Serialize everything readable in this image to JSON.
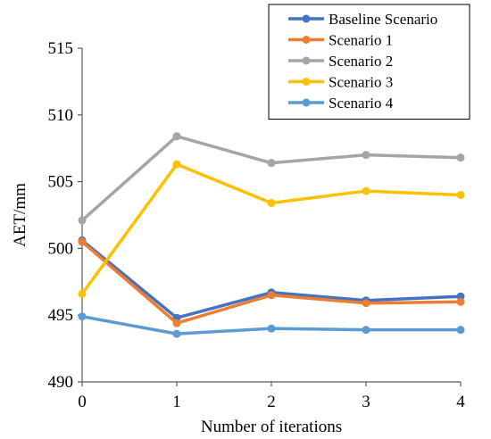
{
  "chart_data": {
    "type": "line",
    "title": "",
    "xlabel": "Number of iterations",
    "ylabel": "AET/mm",
    "x": [
      0,
      1,
      2,
      3,
      4
    ],
    "x_tick_labels": [
      "0",
      "1",
      "2",
      "3",
      "4"
    ],
    "ylim": [
      490,
      515
    ],
    "y_ticks": [
      490,
      495,
      500,
      505,
      510,
      515
    ],
    "grid": false,
    "legend_position": "top-right",
    "series": [
      {
        "name": "Baseline Scenario",
        "color": "#4472C4",
        "values": [
          500.6,
          494.8,
          496.7,
          496.1,
          496.4
        ]
      },
      {
        "name": "Scenario 1",
        "color": "#ED7D31",
        "values": [
          500.5,
          494.4,
          496.5,
          495.9,
          496.0
        ]
      },
      {
        "name": "Scenario 2",
        "color": "#A5A5A5",
        "values": [
          502.1,
          508.4,
          506.4,
          507.0,
          506.8
        ]
      },
      {
        "name": "Scenario 3",
        "color": "#FFC000",
        "values": [
          496.6,
          506.3,
          503.4,
          504.3,
          504.0
        ]
      },
      {
        "name": "Scenario 4",
        "color": "#5B9BD5",
        "values": [
          494.9,
          493.6,
          494.0,
          493.9,
          493.9
        ]
      }
    ]
  }
}
